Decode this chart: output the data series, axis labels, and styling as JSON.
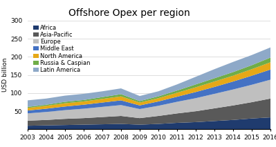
{
  "title": "Offshore Opex per region",
  "ylabel": "USD billion",
  "years": [
    2003,
    2004,
    2005,
    2006,
    2007,
    2008,
    2009,
    2010,
    2011,
    2012,
    2013,
    2014,
    2015,
    2016
  ],
  "series": {
    "Africa": [
      10,
      11,
      12,
      13,
      14,
      15,
      13,
      15,
      18,
      20,
      23,
      26,
      30,
      33
    ],
    "Asia-Pacific": [
      14,
      15,
      17,
      18,
      20,
      22,
      18,
      22,
      26,
      30,
      35,
      40,
      45,
      52
    ],
    "Europe": [
      20,
      22,
      24,
      26,
      28,
      30,
      25,
      28,
      32,
      36,
      40,
      44,
      48,
      52
    ],
    "Middle East": [
      8,
      9,
      10,
      11,
      12,
      13,
      10,
      12,
      14,
      17,
      19,
      22,
      25,
      28
    ],
    "North America": [
      7,
      8,
      9,
      9,
      10,
      11,
      8,
      9,
      11,
      13,
      15,
      16,
      18,
      20
    ],
    "Russia & Caspian": [
      3,
      3,
      4,
      4,
      5,
      6,
      4,
      5,
      6,
      8,
      9,
      10,
      11,
      13
    ],
    "Latin America": [
      18,
      17,
      17,
      17,
      16,
      16,
      14,
      14,
      17,
      21,
      25,
      28,
      28,
      28
    ]
  },
  "colors": {
    "Africa": "#1F3B6E",
    "Asia-Pacific": "#595959",
    "Europe": "#BFBFBF",
    "Middle East": "#4472C4",
    "North America": "#E6A817",
    "Russia & Caspian": "#70AD47",
    "Latin America": "#8EA9C8"
  },
  "ylim": [
    0,
    300
  ],
  "yticks": [
    0,
    50,
    100,
    150,
    200,
    250,
    300
  ],
  "background_color": "#FFFFFF",
  "title_fontsize": 10,
  "legend_fontsize": 6,
  "axis_fontsize": 6.5
}
